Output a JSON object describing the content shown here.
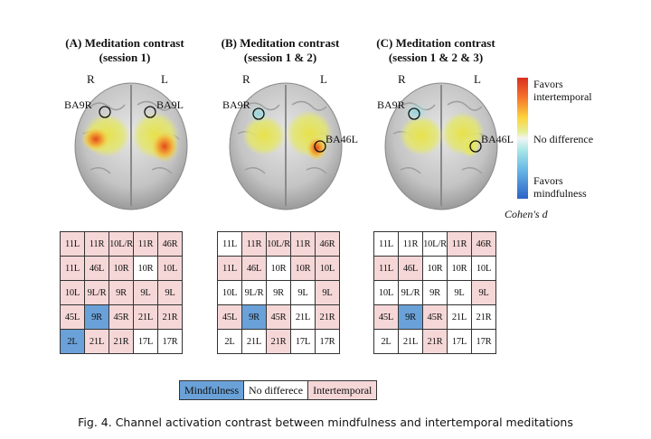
{
  "panels": [
    {
      "title_line1": "(A) Meditation contrast",
      "title_line2": "(session 1)",
      "right": "R",
      "left": "L",
      "markers": [
        "BA9R",
        "BA9L"
      ]
    },
    {
      "title_line1": "(B) Meditation contrast",
      "title_line2": "(session 1 & 2)",
      "right": "R",
      "left": "L",
      "markers": [
        "BA9R",
        "BA46L"
      ]
    },
    {
      "title_line1": "(C) Meditation contrast",
      "title_line2": "(session 1 & 2 & 3)",
      "right": "R",
      "left": "L",
      "markers": [
        "BA9R",
        "BA46L"
      ]
    }
  ],
  "colorbar": {
    "top_label_1": "Favors",
    "top_label_2": "intertemporal",
    "mid_label": "No difference",
    "bottom_label_1": "Favors",
    "bottom_label_2": "mindfulness",
    "metric": "Cohen's d",
    "colors": {
      "high": "#d7301f",
      "mid": "#f4f4f4",
      "low": "#2c63c8"
    }
  },
  "channel_grid_labels": [
    [
      "11L",
      "11R",
      "10L/R",
      "11R",
      "46R"
    ],
    [
      "11L",
      "46L",
      "10R",
      "10R",
      "10L"
    ],
    [
      "10L",
      "9L/R",
      "9R",
      "9L",
      "9L"
    ],
    [
      "45L",
      "9R",
      "45R",
      "21L",
      "21R"
    ],
    [
      "2L",
      "21L",
      "21R",
      "17L",
      "17R"
    ]
  ],
  "grids": [
    {
      "states": [
        [
          "intertemporal",
          "intertemporal",
          "intertemporal",
          "intertemporal",
          "intertemporal"
        ],
        [
          "intertemporal",
          "intertemporal",
          "intertemporal",
          "none",
          "intertemporal"
        ],
        [
          "intertemporal",
          "intertemporal",
          "intertemporal",
          "intertemporal",
          "intertemporal"
        ],
        [
          "intertemporal",
          "mindfulness",
          "intertemporal",
          "intertemporal",
          "intertemporal"
        ],
        [
          "mindfulness",
          "intertemporal",
          "intertemporal",
          "none",
          "none"
        ]
      ]
    },
    {
      "states": [
        [
          "none",
          "intertemporal",
          "intertemporal",
          "intertemporal",
          "intertemporal"
        ],
        [
          "intertemporal",
          "intertemporal",
          "none",
          "intertemporal",
          "intertemporal"
        ],
        [
          "none",
          "none",
          "none",
          "none",
          "intertemporal"
        ],
        [
          "intertemporal",
          "mindfulness",
          "intertemporal",
          "none",
          "intertemporal"
        ],
        [
          "none",
          "none",
          "intertemporal",
          "none",
          "none"
        ]
      ]
    },
    {
      "states": [
        [
          "none",
          "none",
          "none",
          "intertemporal",
          "intertemporal"
        ],
        [
          "intertemporal",
          "intertemporal",
          "none",
          "none",
          "none"
        ],
        [
          "none",
          "none",
          "none",
          "none",
          "intertemporal"
        ],
        [
          "intertemporal",
          "mindfulness",
          "intertemporal",
          "none",
          "none"
        ],
        [
          "none",
          "none",
          "intertemporal",
          "none",
          "none"
        ]
      ]
    }
  ],
  "state_colors": {
    "mindfulness": "#6aa1d8",
    "none": "#ffffff",
    "intertemporal": "#f6d7d7"
  },
  "legend": {
    "mindfulness": "Mindfulness",
    "none": "No differece",
    "intertemporal": "Intertemporal"
  },
  "caption": "Fig. 4. Channel activation contrast between mindfulness and intertemporal meditations"
}
